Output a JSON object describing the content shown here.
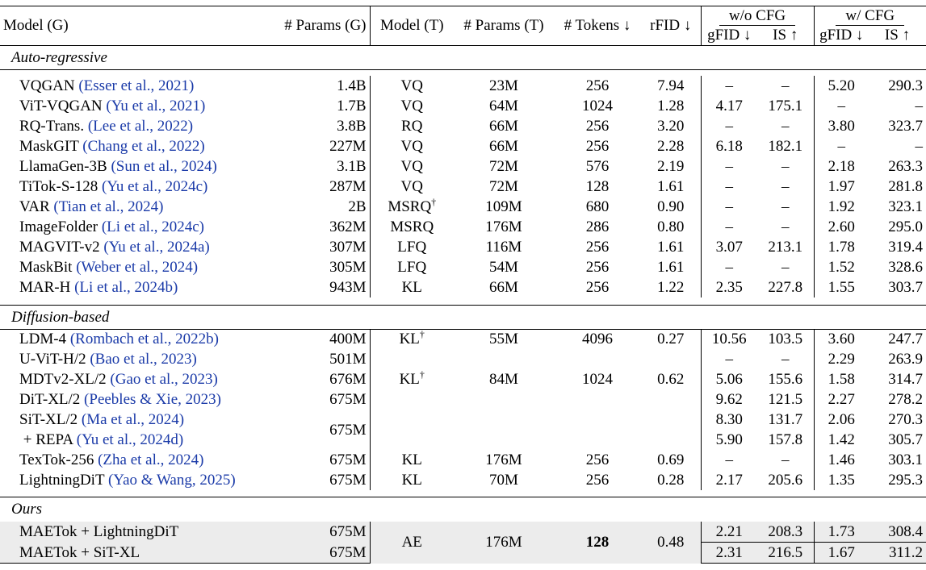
{
  "header": {
    "model_g": "Model (G)",
    "params_g": "# Params (G)",
    "model_t": "Model (T)",
    "params_t": "# Params (T)",
    "tokens": "# Tokens ↓",
    "rfid": "rFID ↓",
    "wo_cfg": "w/o CFG",
    "w_cfg": "w/ CFG",
    "gfid": "gFID ↓",
    "is": "IS ↑"
  },
  "sections": {
    "ar": "Auto-regressive",
    "diff": "Diffusion-based",
    "ours": "Ours"
  },
  "ar_rows": [
    {
      "name": "VQGAN ",
      "cite": "(Esser et al., 2021)",
      "pg": "1.4B",
      "mt": "VQ",
      "pt": "23M",
      "tok": "256",
      "rfid": "7.94",
      "g1": "–",
      "i1": "–",
      "g2": "5.20",
      "i2": "290.3"
    },
    {
      "name": "ViT-VQGAN ",
      "cite": "(Yu et al., 2021)",
      "pg": "1.7B",
      "mt": "VQ",
      "pt": "64M",
      "tok": "1024",
      "rfid": "1.28",
      "g1": "4.17",
      "i1": "175.1",
      "g2": "–",
      "i2": "–"
    },
    {
      "name": "RQ-Trans. ",
      "cite": "(Lee et al., 2022)",
      "pg": "3.8B",
      "mt": "RQ",
      "pt": "66M",
      "tok": "256",
      "rfid": "3.20",
      "g1": "–",
      "i1": "–",
      "g2": "3.80",
      "i2": "323.7"
    },
    {
      "name": "MaskGIT ",
      "cite": "(Chang et al., 2022)",
      "pg": "227M",
      "mt": "VQ",
      "pt": "66M",
      "tok": "256",
      "rfid": "2.28",
      "g1": "6.18",
      "i1": "182.1",
      "g2": "–",
      "i2": "–"
    },
    {
      "name": "LlamaGen-3B ",
      "cite": "(Sun et al., 2024)",
      "pg": "3.1B",
      "mt": "VQ",
      "pt": "72M",
      "tok": "576",
      "rfid": "2.19",
      "g1": "–",
      "i1": "–",
      "g2": "2.18",
      "i2": "263.3"
    },
    {
      "name": "TiTok-S-128 ",
      "cite": "(Yu et al., 2024c)",
      "pg": "287M",
      "mt": "VQ",
      "pt": "72M",
      "tok": "128",
      "rfid": "1.61",
      "g1": "–",
      "i1": "–",
      "g2": "1.97",
      "i2": "281.8"
    },
    {
      "name": "VAR ",
      "cite": "(Tian et al., 2024)",
      "pg": "2B",
      "mt": "MSRQ",
      "pt": "109M",
      "tok": "680",
      "rfid": "0.90",
      "g1": "–",
      "i1": "–",
      "g2": "1.92",
      "i2": "323.1"
    },
    {
      "name": "ImageFolder ",
      "cite": "(Li et al., 2024c)",
      "pg": "362M",
      "mt": "MSRQ",
      "pt": "176M",
      "tok": "286",
      "rfid": "0.80",
      "g1": "–",
      "i1": "–",
      "g2": "2.60",
      "i2": "295.0"
    },
    {
      "name": "MAGVIT-v2 ",
      "cite": "(Yu et al., 2024a)",
      "pg": "307M",
      "mt": "LFQ",
      "pt": "116M",
      "tok": "256",
      "rfid": "1.61",
      "g1": "3.07",
      "i1": "213.1",
      "g2": "1.78",
      "i2": "319.4"
    },
    {
      "name": "MaskBit ",
      "cite": "(Weber et al., 2024)",
      "pg": "305M",
      "mt": "LFQ",
      "pt": "54M",
      "tok": "256",
      "rfid": "1.61",
      "g1": "–",
      "i1": "–",
      "g2": "1.52",
      "i2": "328.6"
    },
    {
      "name": "MAR-H ",
      "cite": "(Li et al., 2024b)",
      "pg": "943M",
      "mt": "KL",
      "pt": "66M",
      "tok": "256",
      "rfid": "1.22",
      "g1": "2.35",
      "i1": "227.8",
      "g2": "1.55",
      "i2": "303.7"
    }
  ],
  "diff_rows": {
    "ldm": {
      "name": "LDM-4 ",
      "cite": "(Rombach et al., 2022b)",
      "pg": "400M",
      "mt": "KL",
      "pt": "55M",
      "tok": "4096",
      "rfid": "0.27",
      "g1": "10.56",
      "i1": "103.5",
      "g2": "3.60",
      "i2": "247.7"
    },
    "uvit": {
      "name": "U-ViT-H/2 ",
      "cite": "(Bao et al., 2023)",
      "pg": "501M",
      "g1": "–",
      "i1": "–",
      "g2": "2.29",
      "i2": "263.9"
    },
    "mdt": {
      "name": "MDTv2-XL/2 ",
      "cite": "(Gao et al., 2023)",
      "pg": "676M",
      "g1": "5.06",
      "i1": "155.6",
      "g2": "1.58",
      "i2": "314.7"
    },
    "dit": {
      "name": "DiT-XL/2 ",
      "cite": "(Peebles & Xie, 2023)",
      "pg": "675M",
      "mt": "KL",
      "pt": "84M",
      "tok": "1024",
      "rfid": "0.62",
      "g1": "9.62",
      "i1": "121.5",
      "g2": "2.27",
      "i2": "278.2"
    },
    "sit": {
      "name": "SiT-XL/2 ",
      "cite": "(Ma et al., 2024)",
      "g1": "8.30",
      "i1": "131.7",
      "g2": "2.06",
      "i2": "270.3"
    },
    "repa": {
      "name": " + REPA ",
      "cite": "(Yu et al., 2024d)",
      "pg": "675M",
      "g1": "5.90",
      "i1": "157.8",
      "g2": "1.42",
      "i2": "305.7"
    },
    "textok": {
      "name": "TexTok-256 ",
      "cite": "(Zha et al., 2024)",
      "pg": "675M",
      "mt": "KL",
      "pt": "176M",
      "tok": "256",
      "rfid": "0.69",
      "g1": "–",
      "i1": "–",
      "g2": "1.46",
      "i2": "303.1"
    },
    "ldit": {
      "name": "LightningDiT ",
      "cite": "(Yao & Wang, 2025)",
      "pg": "675M",
      "mt": "KL",
      "pt": "70M",
      "tok": "256",
      "rfid": "0.28",
      "g1": "2.17",
      "i1": "205.6",
      "g2": "1.35",
      "i2": "295.3"
    }
  },
  "dagger": "†",
  "ours_rows": {
    "a": {
      "name": "MAETok + LightningDiT",
      "pg": "675M",
      "g1": "2.21",
      "i1": "208.3",
      "g2": "1.73",
      "i2": "308.4"
    },
    "b": {
      "name": "MAETok + SiT-XL",
      "pg": "675M",
      "g1": "2.31",
      "i1": "216.5",
      "g2": "1.67",
      "i2": "311.2"
    },
    "mt": "AE",
    "pt": "176M",
    "tok": "128",
    "rfid": "0.48"
  }
}
